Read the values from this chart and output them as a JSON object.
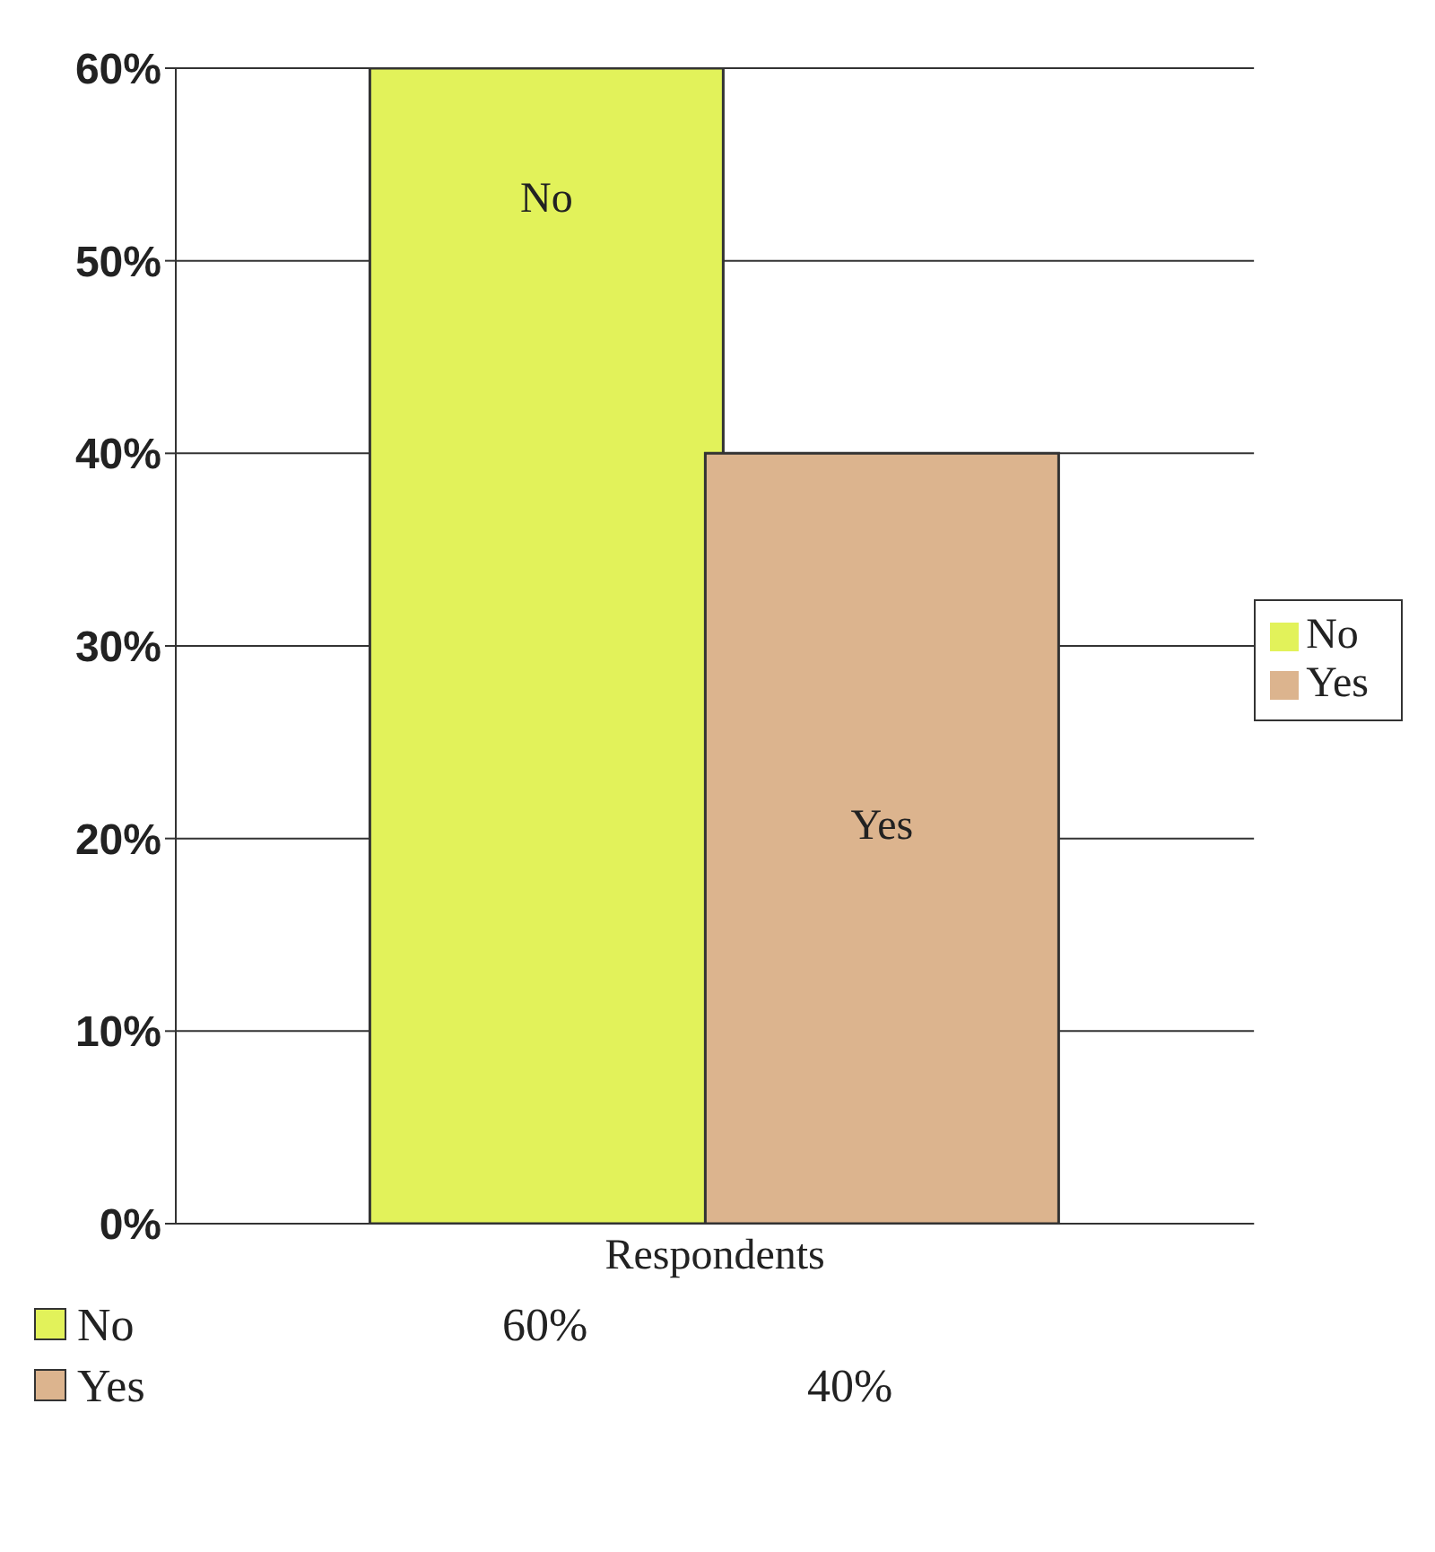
{
  "chart_data": {
    "type": "bar",
    "categories": [
      "Respondents"
    ],
    "series": [
      {
        "name": "No",
        "color": "#e2f25a",
        "values": [
          60
        ],
        "value_labels": [
          "60%"
        ]
      },
      {
        "name": "Yes",
        "color": "#dcb48e",
        "values": [
          40
        ],
        "value_labels": [
          "40%"
        ]
      }
    ],
    "ylim": [
      0,
      60
    ],
    "yticks": [
      {
        "value": 0,
        "label": "0%"
      },
      {
        "value": 10,
        "label": "10%"
      },
      {
        "value": 20,
        "label": "20%"
      },
      {
        "value": 30,
        "label": "30%"
      },
      {
        "value": 40,
        "label": "40%"
      },
      {
        "value": 50,
        "label": "50%"
      },
      {
        "value": 60,
        "label": "60%"
      }
    ],
    "grid": "y",
    "legend": "right"
  }
}
